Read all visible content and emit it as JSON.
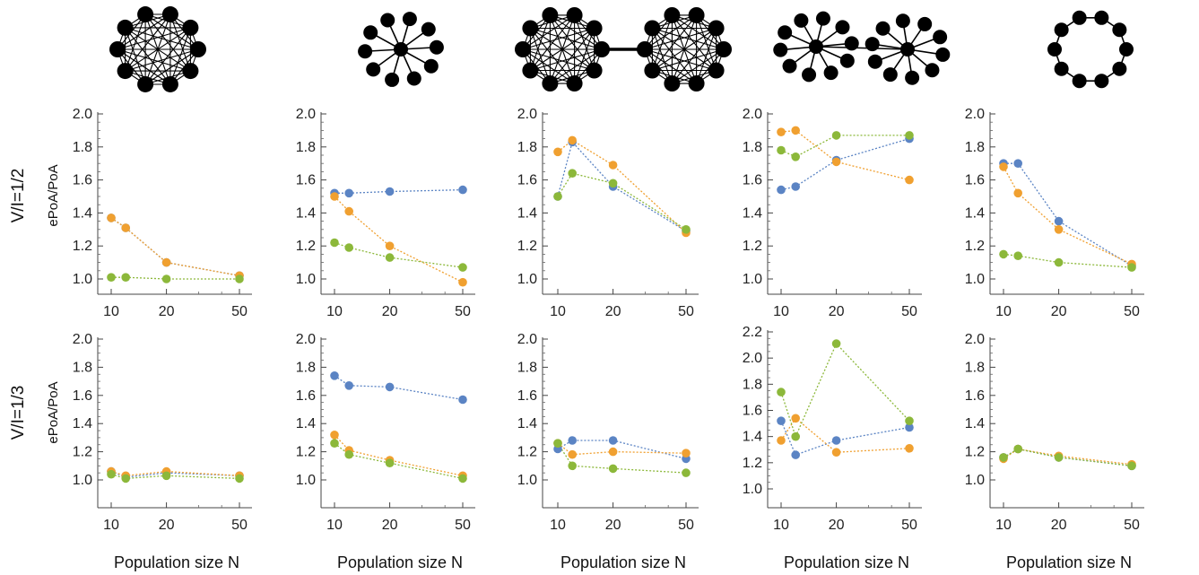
{
  "figure": {
    "row_labels": [
      "V/I=1/2",
      "V/I=1/3"
    ],
    "ylabel": "ePoA/PoA",
    "xlabel": "Population size N",
    "series_colors": [
      "#5b84c4",
      "#f0a030",
      "#8cb83a"
    ],
    "networks": [
      "complete-graph-icon",
      "star-graph-icon",
      "two-complete-graphs-icon",
      "two-stars-icon",
      "ring-graph-icon"
    ]
  },
  "chart_data": [
    {
      "type": "line",
      "row": 0,
      "col": 0,
      "x": [
        10,
        12,
        20,
        50
      ],
      "xticks": [
        10,
        20,
        50
      ],
      "xscale": "log",
      "ylim": [
        0.9,
        2.0
      ],
      "yticks": [
        "1.0",
        "1.2",
        "1.4",
        "1.6",
        "1.8",
        "2.0"
      ],
      "series": [
        {
          "color": "#5b84c4",
          "values": [
            1.37,
            1.31,
            1.1,
            1.02
          ]
        },
        {
          "color": "#f0a030",
          "values": [
            1.37,
            1.31,
            1.1,
            1.02
          ]
        },
        {
          "color": "#8cb83a",
          "values": [
            1.01,
            1.01,
            1.0,
            1.0
          ]
        }
      ]
    },
    {
      "type": "line",
      "row": 0,
      "col": 1,
      "x": [
        10,
        12,
        20,
        50
      ],
      "xticks": [
        10,
        20,
        50
      ],
      "xscale": "log",
      "ylim": [
        0.9,
        2.0
      ],
      "yticks": [
        "1.0",
        "1.2",
        "1.4",
        "1.6",
        "1.8",
        "2.0"
      ],
      "series": [
        {
          "color": "#5b84c4",
          "values": [
            1.52,
            1.52,
            1.53,
            1.54
          ]
        },
        {
          "color": "#f0a030",
          "values": [
            1.5,
            1.41,
            1.2,
            0.98
          ]
        },
        {
          "color": "#8cb83a",
          "values": [
            1.22,
            1.19,
            1.13,
            1.07
          ]
        }
      ]
    },
    {
      "type": "line",
      "row": 0,
      "col": 2,
      "x": [
        10,
        12,
        20,
        50
      ],
      "xticks": [
        10,
        20,
        50
      ],
      "xscale": "log",
      "ylim": [
        0.9,
        2.0
      ],
      "yticks": [
        "1.0",
        "1.2",
        "1.4",
        "1.6",
        "1.8",
        "2.0"
      ],
      "series": [
        {
          "color": "#5b84c4",
          "values": [
            1.5,
            1.83,
            1.56,
            1.29
          ]
        },
        {
          "color": "#f0a030",
          "values": [
            1.77,
            1.84,
            1.69,
            1.28
          ]
        },
        {
          "color": "#8cb83a",
          "values": [
            1.5,
            1.64,
            1.58,
            1.3
          ]
        }
      ]
    },
    {
      "type": "line",
      "row": 0,
      "col": 3,
      "x": [
        10,
        12,
        20,
        50
      ],
      "xticks": [
        10,
        20,
        50
      ],
      "xscale": "log",
      "ylim": [
        0.9,
        2.0
      ],
      "yticks": [
        "1.0",
        "1.2",
        "1.4",
        "1.6",
        "1.8",
        "2.0"
      ],
      "series": [
        {
          "color": "#5b84c4",
          "values": [
            1.54,
            1.56,
            1.72,
            1.85
          ]
        },
        {
          "color": "#f0a030",
          "values": [
            1.89,
            1.9,
            1.71,
            1.6
          ]
        },
        {
          "color": "#8cb83a",
          "values": [
            1.78,
            1.74,
            1.87,
            1.87
          ]
        }
      ]
    },
    {
      "type": "line",
      "row": 0,
      "col": 4,
      "x": [
        10,
        12,
        20,
        50
      ],
      "xticks": [
        10,
        20,
        50
      ],
      "xscale": "log",
      "ylim": [
        0.9,
        2.0
      ],
      "yticks": [
        "1.0",
        "1.2",
        "1.4",
        "1.6",
        "1.8",
        "2.0"
      ],
      "series": [
        {
          "color": "#5b84c4",
          "values": [
            1.7,
            1.7,
            1.35,
            1.08
          ]
        },
        {
          "color": "#f0a030",
          "values": [
            1.68,
            1.52,
            1.3,
            1.09
          ]
        },
        {
          "color": "#8cb83a",
          "values": [
            1.15,
            1.14,
            1.1,
            1.07
          ]
        }
      ]
    },
    {
      "type": "line",
      "row": 1,
      "col": 0,
      "x": [
        10,
        12,
        20,
        50
      ],
      "xticks": [
        10,
        20,
        50
      ],
      "xscale": "log",
      "ylim": [
        0.9,
        2.0
      ],
      "yticks": [
        "1.0",
        "1.2",
        "1.4",
        "1.6",
        "1.8",
        "2.0"
      ],
      "series": [
        {
          "color": "#5b84c4",
          "values": [
            1.06,
            1.02,
            1.05,
            1.03
          ]
        },
        {
          "color": "#f0a030",
          "values": [
            1.06,
            1.03,
            1.06,
            1.03
          ]
        },
        {
          "color": "#8cb83a",
          "values": [
            1.04,
            1.01,
            1.03,
            1.01
          ]
        }
      ]
    },
    {
      "type": "line",
      "row": 1,
      "col": 1,
      "x": [
        10,
        12,
        20,
        50
      ],
      "xticks": [
        10,
        20,
        50
      ],
      "xscale": "log",
      "ylim": [
        0.9,
        2.0
      ],
      "yticks": [
        "1.0",
        "1.2",
        "1.4",
        "1.6",
        "1.8",
        "2.0"
      ],
      "series": [
        {
          "color": "#5b84c4",
          "values": [
            1.74,
            1.67,
            1.66,
            1.57
          ]
        },
        {
          "color": "#f0a030",
          "values": [
            1.32,
            1.21,
            1.14,
            1.03
          ]
        },
        {
          "color": "#8cb83a",
          "values": [
            1.26,
            1.18,
            1.12,
            1.01
          ]
        }
      ]
    },
    {
      "type": "line",
      "row": 1,
      "col": 2,
      "x": [
        10,
        12,
        20,
        50
      ],
      "xticks": [
        10,
        20,
        50
      ],
      "xscale": "log",
      "ylim": [
        0.9,
        2.0
      ],
      "yticks": [
        "1.0",
        "1.2",
        "1.4",
        "1.6",
        "1.8",
        "2.0"
      ],
      "series": [
        {
          "color": "#5b84c4",
          "values": [
            1.22,
            1.28,
            1.28,
            1.15
          ]
        },
        {
          "color": "#f0a030",
          "values": [
            1.26,
            1.18,
            1.2,
            1.19
          ]
        },
        {
          "color": "#8cb83a",
          "values": [
            1.26,
            1.1,
            1.08,
            1.05
          ]
        }
      ]
    },
    {
      "type": "line",
      "row": 1,
      "col": 3,
      "x": [
        10,
        12,
        20,
        50
      ],
      "xticks": [
        10,
        20,
        50
      ],
      "xscale": "log",
      "ylim": [
        0.95,
        2.2
      ],
      "yticks": [
        "1.0",
        "1.2",
        "1.4",
        "1.6",
        "1.8",
        "2.0",
        "2.2"
      ],
      "series": [
        {
          "color": "#5b84c4",
          "values": [
            1.52,
            1.26,
            1.37,
            1.47
          ]
        },
        {
          "color": "#f0a030",
          "values": [
            1.37,
            1.54,
            1.28,
            1.31
          ]
        },
        {
          "color": "#8cb83a",
          "values": [
            1.74,
            1.4,
            2.11,
            1.52
          ]
        }
      ]
    },
    {
      "type": "line",
      "row": 1,
      "col": 4,
      "x": [
        10,
        12,
        20,
        50
      ],
      "xticks": [
        10,
        20,
        50
      ],
      "xscale": "log",
      "ylim": [
        0.9,
        2.0
      ],
      "yticks": [
        "1.0",
        "1.2",
        "1.4",
        "1.6",
        "1.8",
        "2.0"
      ],
      "series": [
        {
          "color": "#5b84c4",
          "values": [
            1.16,
            1.22,
            1.16,
            1.1
          ]
        },
        {
          "color": "#f0a030",
          "values": [
            1.15,
            1.22,
            1.17,
            1.11
          ]
        },
        {
          "color": "#8cb83a",
          "values": [
            1.16,
            1.22,
            1.16,
            1.1
          ]
        }
      ]
    }
  ]
}
